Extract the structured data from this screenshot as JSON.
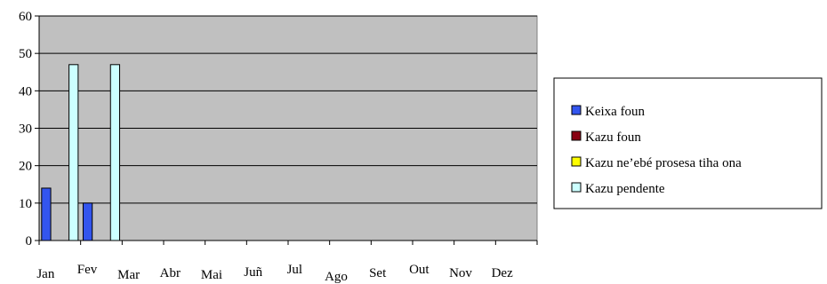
{
  "chart_data": {
    "type": "bar",
    "categories": [
      "Jan",
      "Fev",
      "Mar",
      "Abr",
      "Mai",
      "Juñ",
      "Jul",
      "Ago",
      "Set",
      "Out",
      "Nov",
      "Dez"
    ],
    "series": [
      {
        "name": "Keixa foun",
        "color": "#3355ee",
        "values": [
          14,
          10,
          null,
          null,
          null,
          null,
          null,
          null,
          null,
          null,
          null,
          null
        ]
      },
      {
        "name": "Kazu foun",
        "color": "#880011",
        "values": [
          null,
          null,
          null,
          null,
          null,
          null,
          null,
          null,
          null,
          null,
          null,
          null
        ]
      },
      {
        "name": "Kazu ne’ebé prosesa tiha ona",
        "color": "#ffff00",
        "values": [
          null,
          null,
          null,
          null,
          null,
          null,
          null,
          null,
          null,
          null,
          null,
          null
        ]
      },
      {
        "name": "Kazu pendente",
        "color": "#ccffff",
        "values": [
          47,
          47,
          null,
          null,
          null,
          null,
          null,
          null,
          null,
          null,
          null,
          null
        ]
      }
    ],
    "y_ticks": [
      "0",
      "10",
      "20",
      "30",
      "40",
      "50",
      "60"
    ],
    "ylim": [
      0,
      60
    ],
    "grid": true,
    "plot_background": "#c0c0c0",
    "legend_position": "right"
  }
}
